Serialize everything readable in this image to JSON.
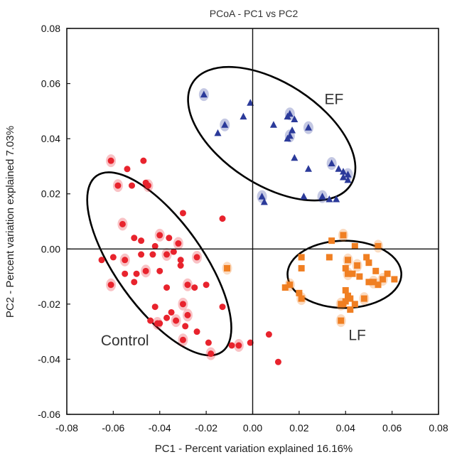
{
  "chart_data": {
    "type": "scatter",
    "title": "PCoA - PC1 vs PC2",
    "xlabel": "PC1 - Percent variation explained 16.16%",
    "ylabel": "PC2 - Percent variation explained 7.03%",
    "xlim": [
      -0.08,
      0.08
    ],
    "ylim": [
      -0.06,
      0.08
    ],
    "xticks": [
      -0.08,
      -0.06,
      -0.04,
      -0.02,
      0.0,
      0.02,
      0.04,
      0.06,
      0.08
    ],
    "yticks": [
      -0.06,
      -0.04,
      -0.02,
      0.0,
      0.02,
      0.04,
      0.06,
      0.08
    ],
    "xtick_labels": [
      "-0.08",
      "-0.06",
      "-0.04",
      "-0.02",
      "0.00",
      "0.02",
      "0.04",
      "0.06",
      "0.08"
    ],
    "ytick_labels": [
      "-0.06",
      "-0.04",
      "-0.02",
      "0.00",
      "0.02",
      "0.04",
      "0.06",
      "0.08"
    ],
    "zero_lines": true,
    "grid": false,
    "series": [
      {
        "name": "Control",
        "marker": "circle",
        "color": "#e8232d",
        "points": [
          [
            -0.061,
            0.032
          ],
          [
            -0.054,
            0.029
          ],
          [
            -0.047,
            0.032
          ],
          [
            -0.058,
            0.023
          ],
          [
            -0.052,
            0.023
          ],
          [
            -0.046,
            0.024
          ],
          [
            -0.045,
            0.023
          ],
          [
            -0.03,
            0.013
          ],
          [
            -0.013,
            0.011
          ],
          [
            -0.056,
            0.009
          ],
          [
            -0.051,
            0.004
          ],
          [
            -0.048,
            0.003
          ],
          [
            -0.04,
            0.005
          ],
          [
            -0.036,
            0.004
          ],
          [
            -0.042,
            0.001
          ],
          [
            -0.032,
            0.002
          ],
          [
            -0.065,
            -0.004
          ],
          [
            -0.06,
            -0.003
          ],
          [
            -0.055,
            -0.004
          ],
          [
            -0.048,
            -0.002
          ],
          [
            -0.043,
            -0.002
          ],
          [
            -0.037,
            -0.002
          ],
          [
            -0.034,
            -0.001
          ],
          [
            -0.031,
            -0.004
          ],
          [
            -0.024,
            -0.003
          ],
          [
            -0.055,
            -0.009
          ],
          [
            -0.05,
            -0.009
          ],
          [
            -0.046,
            -0.008
          ],
          [
            -0.04,
            -0.008
          ],
          [
            -0.031,
            -0.006
          ],
          [
            -0.061,
            -0.013
          ],
          [
            -0.051,
            -0.012
          ],
          [
            -0.037,
            -0.014
          ],
          [
            -0.028,
            -0.013
          ],
          [
            -0.025,
            -0.014
          ],
          [
            -0.02,
            -0.013
          ],
          [
            -0.03,
            -0.02
          ],
          [
            -0.042,
            -0.021
          ],
          [
            -0.035,
            -0.023
          ],
          [
            -0.028,
            -0.024
          ],
          [
            -0.013,
            -0.021
          ],
          [
            -0.037,
            -0.025
          ],
          [
            -0.033,
            -0.026
          ],
          [
            -0.029,
            -0.028
          ],
          [
            -0.044,
            -0.026
          ],
          [
            -0.041,
            -0.027
          ],
          [
            -0.04,
            -0.027
          ],
          [
            -0.024,
            -0.03
          ],
          [
            -0.03,
            -0.033
          ],
          [
            -0.019,
            -0.034
          ],
          [
            -0.009,
            -0.035
          ],
          [
            -0.006,
            -0.035
          ],
          [
            -0.001,
            -0.034
          ],
          [
            0.007,
            -0.031
          ],
          [
            -0.018,
            -0.038
          ],
          [
            0.011,
            -0.041
          ]
        ]
      },
      {
        "name": "EF",
        "marker": "triangle",
        "color": "#2b3a9a",
        "points": [
          [
            -0.021,
            0.056
          ],
          [
            -0.001,
            0.053
          ],
          [
            -0.004,
            0.048
          ],
          [
            0.016,
            0.049
          ],
          [
            0.015,
            0.048
          ],
          [
            0.018,
            0.047
          ],
          [
            -0.012,
            0.045
          ],
          [
            -0.015,
            0.042
          ],
          [
            0.009,
            0.045
          ],
          [
            0.016,
            0.041
          ],
          [
            0.015,
            0.04
          ],
          [
            0.017,
            0.043
          ],
          [
            0.024,
            0.044
          ],
          [
            0.018,
            0.033
          ],
          [
            0.024,
            0.029
          ],
          [
            0.034,
            0.031
          ],
          [
            0.037,
            0.029
          ],
          [
            0.039,
            0.028
          ],
          [
            0.041,
            0.027
          ],
          [
            0.039,
            0.026
          ],
          [
            0.041,
            0.025
          ],
          [
            0.004,
            0.019
          ],
          [
            0.005,
            0.017
          ],
          [
            0.022,
            0.019
          ],
          [
            0.03,
            0.019
          ],
          [
            0.033,
            0.018
          ],
          [
            0.036,
            0.018
          ]
        ]
      },
      {
        "name": "LF",
        "marker": "square",
        "color": "#f07f22",
        "points": [
          [
            0.039,
            0.005
          ],
          [
            0.034,
            0.003
          ],
          [
            0.044,
            0.001
          ],
          [
            0.054,
            0.001
          ],
          [
            0.021,
            -0.003
          ],
          [
            0.033,
            -0.003
          ],
          [
            0.041,
            -0.004
          ],
          [
            0.049,
            -0.003
          ],
          [
            0.05,
            -0.005
          ],
          [
            0.045,
            -0.006
          ],
          [
            0.021,
            -0.007
          ],
          [
            0.04,
            -0.007
          ],
          [
            -0.011,
            -0.007
          ],
          [
            0.053,
            -0.008
          ],
          [
            0.058,
            -0.009
          ],
          [
            0.041,
            -0.009
          ],
          [
            0.043,
            -0.009
          ],
          [
            0.046,
            -0.01
          ],
          [
            0.056,
            -0.011
          ],
          [
            0.061,
            -0.011
          ],
          [
            0.05,
            -0.012
          ],
          [
            0.052,
            -0.012
          ],
          [
            0.054,
            -0.013
          ],
          [
            0.014,
            -0.014
          ],
          [
            0.016,
            -0.013
          ],
          [
            0.04,
            -0.015
          ],
          [
            0.02,
            -0.016
          ],
          [
            0.021,
            -0.018
          ],
          [
            0.041,
            -0.017
          ],
          [
            0.042,
            -0.018
          ],
          [
            0.048,
            -0.018
          ],
          [
            0.04,
            -0.019
          ],
          [
            0.039,
            -0.02
          ],
          [
            0.038,
            -0.02
          ],
          [
            0.044,
            -0.02
          ],
          [
            0.042,
            -0.022
          ],
          [
            0.038,
            -0.026
          ]
        ]
      }
    ],
    "group_labels": [
      {
        "text": "EF",
        "x": 0.035,
        "y": 0.0525
      },
      {
        "text": "LF",
        "x": 0.045,
        "y": -0.033
      },
      {
        "text": "Control",
        "x": -0.055,
        "y": -0.035
      }
    ],
    "enclosures": [
      {
        "group": "EF",
        "cx": 0.0082,
        "cy": 0.0418,
        "rx": 0.0405,
        "ry": 0.0185,
        "rotation_deg": 33
      },
      {
        "group": "LF",
        "cx": 0.0395,
        "cy": -0.0092,
        "rx": 0.0245,
        "ry": 0.0122,
        "rotation_deg": 0
      },
      {
        "group": "Control",
        "cx": -0.0402,
        "cy": -0.0054,
        "rx": 0.0465,
        "ry": 0.0158,
        "rotation_deg": 54.5
      }
    ]
  }
}
